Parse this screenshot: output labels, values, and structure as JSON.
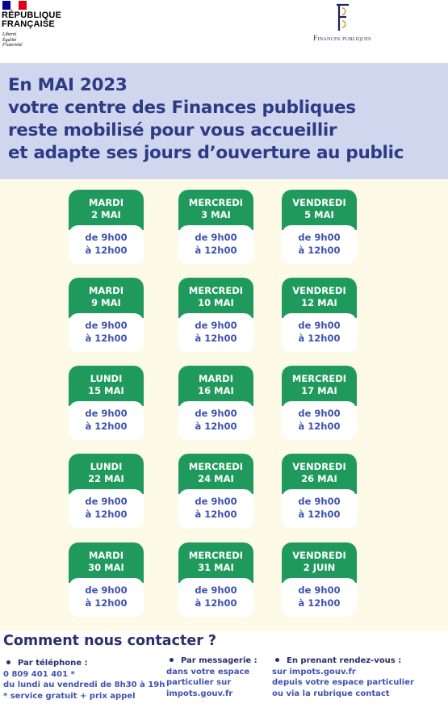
{
  "header": {
    "republique_line1": "RÉPUBLIQUE",
    "republique_line2": "FRANÇAISE",
    "motto": [
      "Liberté",
      "Égalité",
      "Fraternité"
    ],
    "finances_name": "Finances publiques",
    "flag_colors": [
      "#000091",
      "#ffffff",
      "#e1000f"
    ]
  },
  "banner": {
    "lines": [
      "En MAI 2023",
      "votre centre des Finances publiques",
      "reste mobilisé pour vous accueillir",
      "et adapte ses jours d’ouverture au public"
    ]
  },
  "schedule": {
    "rows": [
      [
        {
          "day": "MARDI",
          "date": "2 MAI",
          "from": "de 9h00",
          "to": "à 12h00"
        },
        {
          "day": "MERCREDI",
          "date": "3 MAI",
          "from": "de 9h00",
          "to": "à 12h00"
        },
        {
          "day": "VENDREDI",
          "date": "5 MAI",
          "from": "de 9h00",
          "to": "à 12h00"
        }
      ],
      [
        {
          "day": "MARDI",
          "date": "9 MAI",
          "from": "de 9h00",
          "to": "à 12h00"
        },
        {
          "day": "MERCREDI",
          "date": "10 MAI",
          "from": "de 9h00",
          "to": "à 12h00"
        },
        {
          "day": "VENDREDI",
          "date": "12 MAI",
          "from": "de 9h00",
          "to": "à 12h00"
        }
      ],
      [
        {
          "day": "LUNDI",
          "date": "15 MAI",
          "from": "de 9h00",
          "to": "à 12h00"
        },
        {
          "day": "MARDI",
          "date": "16 MAI",
          "from": "de 9h00",
          "to": "à 12h00"
        },
        {
          "day": "MERCREDI",
          "date": "17 MAI",
          "from": "de 9h00",
          "to": "à 12h00"
        }
      ],
      [
        {
          "day": "LUNDI",
          "date": "22 MAI",
          "from": "de 9h00",
          "to": "à 12h00"
        },
        {
          "day": "MERCREDI",
          "date": "24 MAI",
          "from": "de 9h00",
          "to": "à 12h00"
        },
        {
          "day": "VENDREDI",
          "date": "26 MAI",
          "from": "de 9h00",
          "to": "à 12h00"
        }
      ],
      [
        {
          "day": "MARDI",
          "date": "30 MAI",
          "from": "de 9h00",
          "to": "à 12h00"
        },
        {
          "day": "MERCREDI",
          "date": "31 MAI",
          "from": "de 9h00",
          "to": "à 12h00"
        },
        {
          "day": "VENDREDI",
          "date": "2 JUIN",
          "from": "de 9h00",
          "to": "à 12h00"
        }
      ]
    ]
  },
  "contact": {
    "title": "Comment nous contacter ?",
    "phone": {
      "title": "Par téléphone :",
      "number": "0 809 401 401 *",
      "hours": "du lundi au vendredi de 8h30 à 19h",
      "note": "* service gratuit + prix appel"
    },
    "messaging": {
      "title": "Par messagerie :",
      "line1": "dans votre espace",
      "line2": "particulier sur",
      "line3": "impots.gouv.fr"
    },
    "appointment": {
      "title": "En prenant rendez-vous :",
      "line1": "sur impots.gouv.fr",
      "line2": "depuis votre espace particulier",
      "line3": "ou via la rubrique contact"
    }
  },
  "colors": {
    "banner_bg": "#d0d6ee",
    "title_blue": "#2d3a85",
    "card_green": "#1f9a5c",
    "hours_blue": "#3f52b0",
    "schedule_bg": "#fdfbe7"
  }
}
